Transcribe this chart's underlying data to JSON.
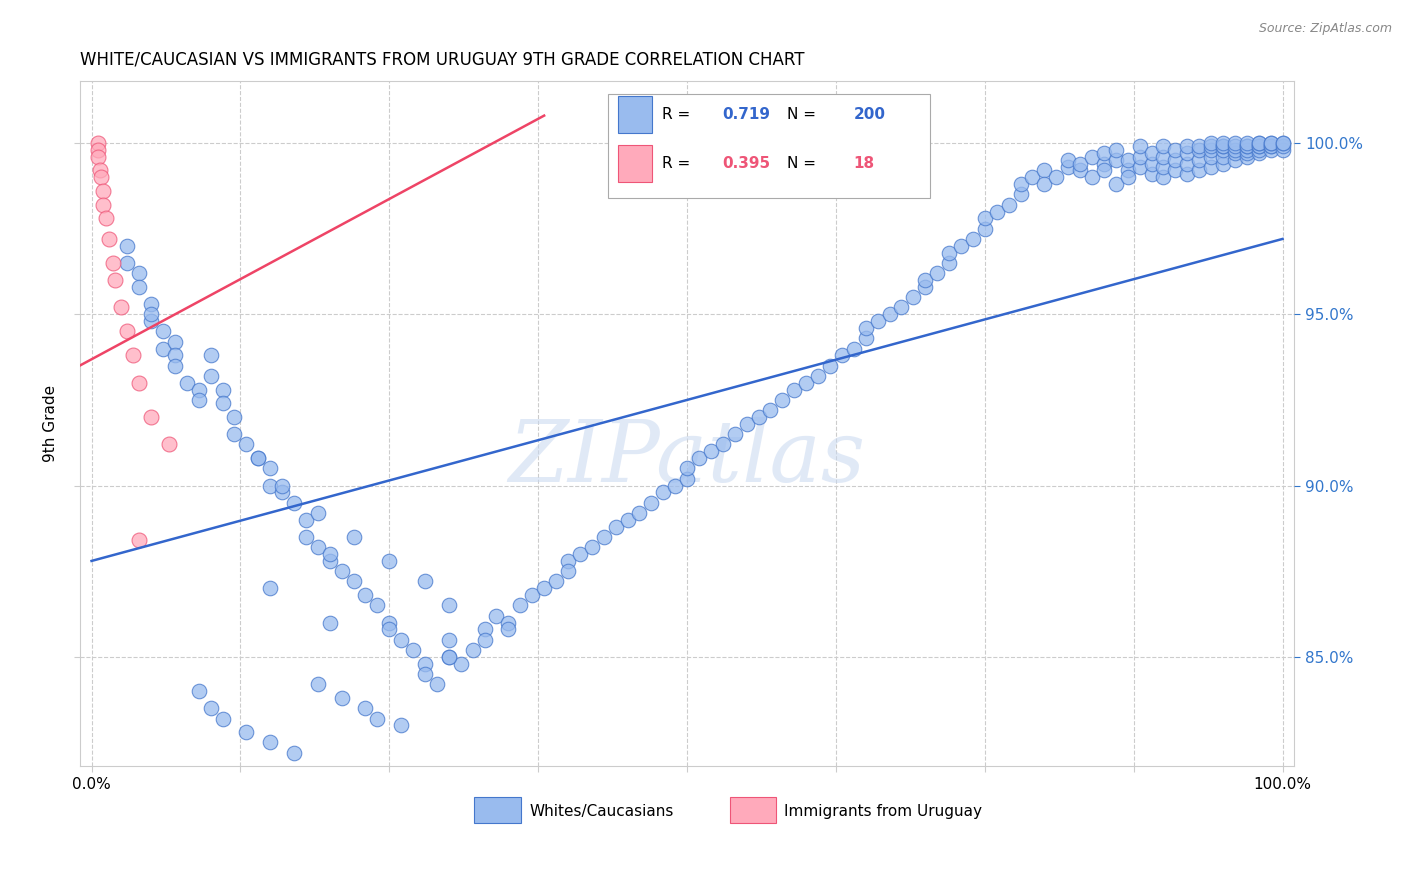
{
  "title": "WHITE/CAUCASIAN VS IMMIGRANTS FROM URUGUAY 9TH GRADE CORRELATION CHART",
  "source": "Source: ZipAtlas.com",
  "ylabel": "9th Grade",
  "watermark": "ZIPatlas",
  "blue_R": 0.719,
  "blue_N": 200,
  "pink_R": 0.395,
  "pink_N": 18,
  "blue_face_color": "#99bbee",
  "blue_edge_color": "#4477cc",
  "pink_face_color": "#ffaabb",
  "pink_edge_color": "#ee5577",
  "blue_line_color": "#3366cc",
  "pink_line_color": "#ee4466",
  "legend_blue_label": "Whites/Caucasians",
  "legend_pink_label": "Immigrants from Uruguay",
  "blue_trend": [
    0.0,
    1.0,
    0.878,
    0.972
  ],
  "pink_trend": [
    -0.01,
    0.38,
    0.935,
    1.008
  ],
  "ylim": [
    0.818,
    1.018
  ],
  "xlim": [
    -0.01,
    1.01
  ],
  "yticks": [
    0.85,
    0.9,
    0.95,
    1.0
  ],
  "ytick_labels_right": [
    "85.0%",
    "90.0%",
    "95.0%",
    "100.0%"
  ],
  "blue_points_x": [
    0.03,
    0.03,
    0.04,
    0.04,
    0.05,
    0.05,
    0.05,
    0.06,
    0.06,
    0.07,
    0.07,
    0.07,
    0.08,
    0.09,
    0.09,
    0.1,
    0.1,
    0.11,
    0.11,
    0.12,
    0.12,
    0.13,
    0.14,
    0.15,
    0.15,
    0.16,
    0.17,
    0.18,
    0.18,
    0.19,
    0.2,
    0.2,
    0.21,
    0.22,
    0.23,
    0.24,
    0.25,
    0.25,
    0.26,
    0.27,
    0.28,
    0.28,
    0.29,
    0.3,
    0.3,
    0.31,
    0.32,
    0.33,
    0.33,
    0.34,
    0.35,
    0.36,
    0.37,
    0.38,
    0.39,
    0.4,
    0.4,
    0.41,
    0.42,
    0.43,
    0.44,
    0.45,
    0.46,
    0.47,
    0.48,
    0.49,
    0.5,
    0.5,
    0.51,
    0.52,
    0.53,
    0.54,
    0.55,
    0.56,
    0.57,
    0.58,
    0.59,
    0.6,
    0.61,
    0.62,
    0.63,
    0.64,
    0.65,
    0.65,
    0.66,
    0.67,
    0.68,
    0.69,
    0.7,
    0.7,
    0.71,
    0.72,
    0.72,
    0.73,
    0.74,
    0.75,
    0.75,
    0.76,
    0.77,
    0.78,
    0.78,
    0.79,
    0.8,
    0.8,
    0.81,
    0.82,
    0.82,
    0.83,
    0.83,
    0.84,
    0.84,
    0.85,
    0.85,
    0.85,
    0.86,
    0.86,
    0.86,
    0.87,
    0.87,
    0.87,
    0.88,
    0.88,
    0.88,
    0.89,
    0.89,
    0.89,
    0.9,
    0.9,
    0.9,
    0.9,
    0.91,
    0.91,
    0.91,
    0.92,
    0.92,
    0.92,
    0.92,
    0.93,
    0.93,
    0.93,
    0.93,
    0.94,
    0.94,
    0.94,
    0.94,
    0.94,
    0.95,
    0.95,
    0.95,
    0.95,
    0.95,
    0.95,
    0.96,
    0.96,
    0.96,
    0.96,
    0.96,
    0.97,
    0.97,
    0.97,
    0.97,
    0.97,
    0.97,
    0.98,
    0.98,
    0.98,
    0.98,
    0.98,
    0.98,
    0.99,
    0.99,
    0.99,
    0.99,
    0.99,
    1.0,
    1.0,
    1.0,
    1.0,
    0.14,
    0.16,
    0.19,
    0.22,
    0.25,
    0.28,
    0.3,
    0.35,
    0.09,
    0.1,
    0.11,
    0.13,
    0.15,
    0.17,
    0.19,
    0.21,
    0.23,
    0.24,
    0.26,
    0.15,
    0.2,
    0.3
  ],
  "blue_points_y": [
    0.97,
    0.965,
    0.962,
    0.958,
    0.953,
    0.948,
    0.95,
    0.945,
    0.94,
    0.942,
    0.938,
    0.935,
    0.93,
    0.928,
    0.925,
    0.938,
    0.932,
    0.928,
    0.924,
    0.92,
    0.915,
    0.912,
    0.908,
    0.905,
    0.9,
    0.898,
    0.895,
    0.89,
    0.885,
    0.882,
    0.878,
    0.88,
    0.875,
    0.872,
    0.868,
    0.865,
    0.86,
    0.858,
    0.855,
    0.852,
    0.848,
    0.845,
    0.842,
    0.855,
    0.85,
    0.848,
    0.852,
    0.858,
    0.855,
    0.862,
    0.86,
    0.865,
    0.868,
    0.87,
    0.872,
    0.878,
    0.875,
    0.88,
    0.882,
    0.885,
    0.888,
    0.89,
    0.892,
    0.895,
    0.898,
    0.9,
    0.902,
    0.905,
    0.908,
    0.91,
    0.912,
    0.915,
    0.918,
    0.92,
    0.922,
    0.925,
    0.928,
    0.93,
    0.932,
    0.935,
    0.938,
    0.94,
    0.943,
    0.946,
    0.948,
    0.95,
    0.952,
    0.955,
    0.958,
    0.96,
    0.962,
    0.965,
    0.968,
    0.97,
    0.972,
    0.975,
    0.978,
    0.98,
    0.982,
    0.985,
    0.988,
    0.99,
    0.992,
    0.988,
    0.99,
    0.993,
    0.995,
    0.992,
    0.994,
    0.996,
    0.99,
    0.994,
    0.997,
    0.992,
    0.995,
    0.998,
    0.988,
    0.992,
    0.995,
    0.99,
    0.993,
    0.996,
    0.999,
    0.991,
    0.994,
    0.997,
    0.99,
    0.993,
    0.996,
    0.999,
    0.992,
    0.995,
    0.998,
    0.991,
    0.994,
    0.997,
    0.999,
    0.992,
    0.995,
    0.998,
    0.999,
    0.993,
    0.996,
    0.998,
    0.999,
    1.0,
    0.994,
    0.996,
    0.998,
    0.999,
    0.999,
    1.0,
    0.995,
    0.997,
    0.998,
    0.999,
    1.0,
    0.996,
    0.997,
    0.998,
    0.999,
    0.999,
    1.0,
    0.997,
    0.998,
    0.999,
    0.999,
    1.0,
    1.0,
    0.998,
    0.999,
    0.999,
    1.0,
    1.0,
    0.998,
    0.999,
    1.0,
    1.0,
    0.908,
    0.9,
    0.892,
    0.885,
    0.878,
    0.872,
    0.865,
    0.858,
    0.84,
    0.835,
    0.832,
    0.828,
    0.825,
    0.822,
    0.842,
    0.838,
    0.835,
    0.832,
    0.83,
    0.87,
    0.86,
    0.85
  ],
  "pink_points_x": [
    0.005,
    0.005,
    0.005,
    0.007,
    0.008,
    0.01,
    0.01,
    0.012,
    0.015,
    0.018,
    0.02,
    0.025,
    0.03,
    0.035,
    0.04,
    0.05,
    0.065,
    0.04
  ],
  "pink_points_y": [
    1.0,
    0.998,
    0.996,
    0.992,
    0.99,
    0.986,
    0.982,
    0.978,
    0.972,
    0.965,
    0.96,
    0.952,
    0.945,
    0.938,
    0.93,
    0.92,
    0.912,
    0.884
  ]
}
